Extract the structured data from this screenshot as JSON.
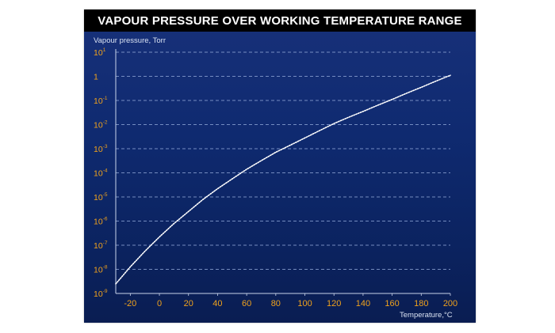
{
  "chart_data": {
    "type": "line",
    "title": "VAPOUR PRESSURE OVER WORKING TEMPERATURE RANGE",
    "xlabel": "Temperature,°C",
    "ylabel": "Vapour pressure, Torr",
    "x_ticks": [
      "-20",
      "0",
      "20",
      "40",
      "60",
      "80",
      "100",
      "120",
      "140",
      "160",
      "180",
      "200"
    ],
    "x_tick_values": [
      -20,
      0,
      20,
      40,
      60,
      80,
      100,
      120,
      140,
      160,
      180,
      200
    ],
    "y_ticks": [
      {
        "base": "10",
        "exp": "1",
        "value": 10
      },
      {
        "base": "1",
        "exp": "",
        "value": 1
      },
      {
        "base": "10",
        "exp": "-1",
        "value": 0.1
      },
      {
        "base": "10",
        "exp": "-2",
        "value": 0.01
      },
      {
        "base": "10",
        "exp": "-3",
        "value": 0.001
      },
      {
        "base": "10",
        "exp": "-4",
        "value": 0.0001
      },
      {
        "base": "10",
        "exp": "-5",
        "value": 1e-05
      },
      {
        "base": "10",
        "exp": "-6",
        "value": 1e-06
      },
      {
        "base": "10",
        "exp": "-7",
        "value": 1e-07
      },
      {
        "base": "10",
        "exp": "-8",
        "value": 1e-08
      },
      {
        "base": "10",
        "exp": "-9",
        "value": 1e-09
      }
    ],
    "x_range": [
      -30,
      200
    ],
    "y_range": [
      1e-09,
      10
    ],
    "y_scale": "log",
    "grid": true,
    "series": [
      {
        "x": [
          -30,
          -20,
          -10,
          0,
          10,
          20,
          30,
          40,
          50,
          60,
          70,
          80,
          90,
          100,
          110,
          120,
          130,
          140,
          150,
          160,
          170,
          180,
          190,
          200
        ],
        "y": [
          2.5e-09,
          1.26e-08,
          5.6e-08,
          2.2e-07,
          7.9e-07,
          2.5e-06,
          7.9e-06,
          2.2e-05,
          5.6e-05,
          0.00014,
          0.00032,
          0.00071,
          0.0014,
          0.0028,
          0.0056,
          0.011,
          0.02,
          0.035,
          0.063,
          0.11,
          0.2,
          0.35,
          0.63,
          1.1
        ]
      }
    ],
    "colors": {
      "curve": "#ffffff",
      "grid": "#8fa6d6",
      "axis": "#c8d3ea",
      "tick_labels": "#f0a21c",
      "axis_labels": "#d9e2f2"
    }
  }
}
